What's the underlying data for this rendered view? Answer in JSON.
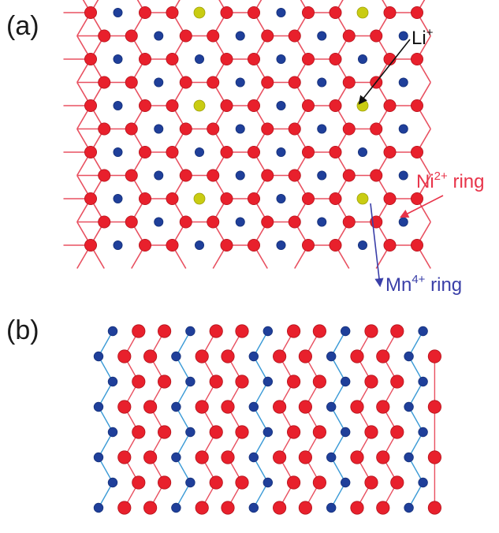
{
  "panels": [
    {
      "label": "(a)",
      "annotations": [
        {
          "base": "Li",
          "sup": "+",
          "suffix": "",
          "color": "#111111"
        },
        {
          "base": "Ni",
          "sup": "2+",
          "suffix": " ring",
          "color": "#e8344a"
        },
        {
          "base": "Mn",
          "sup": "4+",
          "suffix": " ring",
          "color": "#3a3fa8"
        }
      ]
    },
    {
      "label": "(b)"
    }
  ],
  "colors": {
    "ni_atom": "#e8202c",
    "mn_atom": "#1f3f9a",
    "li_atom": "#c9cc12",
    "ni_bond": "#e85060",
    "mn_bond": "#3a9ad6",
    "li_arrow": "#111111",
    "ni_arrow": "#e8344a",
    "mn_arrow": "#3a3fa8"
  }
}
